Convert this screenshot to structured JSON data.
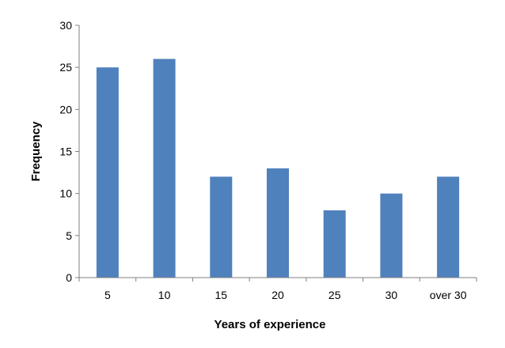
{
  "chart_data": {
    "type": "bar",
    "categories": [
      "5",
      "10",
      "15",
      "20",
      "25",
      "30",
      "over 30"
    ],
    "series": [
      {
        "values": [
          25,
          26,
          12,
          13,
          8,
          10,
          12
        ]
      }
    ],
    "xlabel": "Years of experience",
    "ylabel": "Frequency",
    "ylim": [
      0,
      30
    ],
    "yticks": [
      0,
      5,
      10,
      15,
      20,
      25,
      30
    ],
    "grid": false,
    "legend": "none",
    "bar_color": "#4F81BD"
  }
}
